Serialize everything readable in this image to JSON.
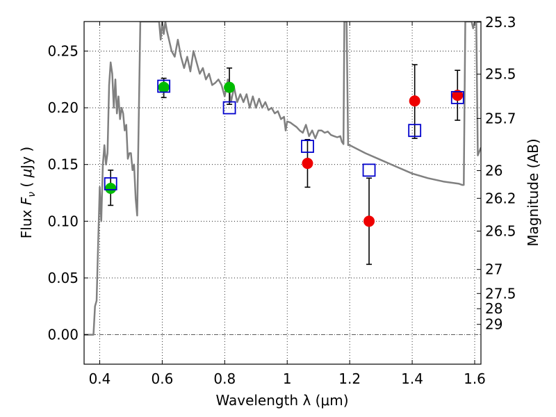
{
  "chart_data": {
    "type": "scatter",
    "xlabel": "Wavelength  λ (μm)",
    "ylabel": "Flux  F_ν  ( μJy )",
    "ylabel_right": "Magnitude (AB)",
    "xlim": [
      0.35,
      1.62
    ],
    "ylim": [
      -0.026,
      0.276
    ],
    "x_ticks": [
      0.4,
      0.6,
      0.8,
      1.0,
      1.2,
      1.4,
      1.6
    ],
    "x_tick_labels": [
      "0.4",
      "0.6",
      "0.8",
      "1",
      "1.2",
      "1.4",
      "1.6"
    ],
    "y_ticks": [
      0.0,
      0.05,
      0.1,
      0.15,
      0.2,
      0.25
    ],
    "y_tick_labels": [
      "0.00",
      "0.05",
      "0.10",
      "0.15",
      "0.20",
      "0.25"
    ],
    "mag_ticks": [
      {
        "label": "25.3",
        "flux": 0.2755
      },
      {
        "label": "25.5",
        "flux": 0.2296
      },
      {
        "label": "25.7",
        "flux": 0.1906
      },
      {
        "label": "26",
        "flux": 0.1446
      },
      {
        "label": "26.2",
        "flux": 0.1202
      },
      {
        "label": "26.5",
        "flux": 0.0913
      },
      {
        "label": "27",
        "flux": 0.0575
      },
      {
        "label": "27.5",
        "flux": 0.0363
      },
      {
        "label": "28",
        "flux": 0.0229
      },
      {
        "label": "29",
        "flux": 0.0091
      }
    ],
    "grid": true,
    "model_sed": {
      "color": "#808080",
      "x": [
        0.35,
        0.38,
        0.385,
        0.39,
        0.395,
        0.4,
        0.405,
        0.41,
        0.415,
        0.42,
        0.425,
        0.43,
        0.435,
        0.44,
        0.445,
        0.45,
        0.455,
        0.46,
        0.465,
        0.47,
        0.475,
        0.48,
        0.485,
        0.49,
        0.495,
        0.5,
        0.505,
        0.51,
        0.515,
        0.52,
        0.53,
        0.54,
        0.55,
        0.56,
        0.57,
        0.575,
        0.58,
        0.585,
        0.59,
        0.595,
        0.6,
        0.605,
        0.61,
        0.615,
        0.62,
        0.63,
        0.64,
        0.65,
        0.66,
        0.67,
        0.68,
        0.69,
        0.7,
        0.71,
        0.72,
        0.73,
        0.74,
        0.75,
        0.76,
        0.77,
        0.78,
        0.79,
        0.8,
        0.81,
        0.82,
        0.83,
        0.84,
        0.85,
        0.86,
        0.87,
        0.88,
        0.89,
        0.9,
        0.91,
        0.92,
        0.93,
        0.94,
        0.95,
        0.96,
        0.97,
        0.98,
        0.99,
        0.995,
        1.0,
        1.01,
        1.02,
        1.03,
        1.04,
        1.05,
        1.06,
        1.07,
        1.08,
        1.09,
        1.1,
        1.11,
        1.12,
        1.13,
        1.14,
        1.15,
        1.16,
        1.17,
        1.175,
        1.18,
        1.183,
        1.186,
        1.19,
        1.195,
        1.2,
        1.25,
        1.3,
        1.35,
        1.4,
        1.45,
        1.5,
        1.55,
        1.56,
        1.565,
        1.57,
        1.575,
        1.58,
        1.59,
        1.595,
        1.6,
        1.605,
        1.61,
        1.62
      ],
      "y": [
        0.0,
        0.0,
        0.025,
        0.03,
        0.08,
        0.13,
        0.1,
        0.15,
        0.167,
        0.15,
        0.16,
        0.22,
        0.24,
        0.23,
        0.2,
        0.225,
        0.195,
        0.21,
        0.19,
        0.2,
        0.195,
        0.18,
        0.185,
        0.155,
        0.16,
        0.16,
        0.145,
        0.15,
        0.12,
        0.105,
        0.276,
        0.276,
        0.276,
        0.276,
        0.276,
        0.276,
        0.276,
        0.276,
        0.276,
        0.26,
        0.276,
        0.265,
        0.276,
        0.268,
        0.262,
        0.25,
        0.245,
        0.26,
        0.245,
        0.235,
        0.245,
        0.232,
        0.25,
        0.24,
        0.23,
        0.235,
        0.225,
        0.23,
        0.22,
        0.222,
        0.225,
        0.22,
        0.21,
        0.225,
        0.205,
        0.218,
        0.205,
        0.212,
        0.205,
        0.212,
        0.2,
        0.21,
        0.2,
        0.208,
        0.2,
        0.205,
        0.198,
        0.2,
        0.195,
        0.197,
        0.19,
        0.192,
        0.18,
        0.188,
        0.187,
        0.185,
        0.183,
        0.18,
        0.178,
        0.185,
        0.175,
        0.18,
        0.173,
        0.18,
        0.18,
        0.178,
        0.179,
        0.176,
        0.175,
        0.174,
        0.175,
        0.17,
        0.168,
        0.276,
        0.276,
        0.276,
        0.167,
        0.167,
        0.16,
        0.154,
        0.148,
        0.142,
        0.138,
        0.135,
        0.133,
        0.132,
        0.132,
        0.276,
        0.276,
        0.276,
        0.276,
        0.27,
        0.276,
        0.276,
        0.158,
        0.165
      ]
    },
    "series": [
      {
        "marker": "open-square",
        "color": "#0000cc",
        "x": [
          0.435,
          0.605,
          0.815,
          1.065,
          1.262,
          1.408,
          1.545
        ],
        "y": [
          0.133,
          0.219,
          0.2,
          0.166,
          0.145,
          0.18,
          0.209
        ]
      },
      {
        "marker": "filled-circle",
        "color": "#00bb00",
        "x": [
          0.435,
          0.605,
          0.815
        ],
        "y": [
          0.129,
          0.218,
          0.218
        ]
      },
      {
        "marker": "filled-circle",
        "color": "#ee0000",
        "x": [
          1.065,
          1.262,
          1.408,
          1.545
        ],
        "y": [
          0.151,
          0.1,
          0.206,
          0.211
        ]
      }
    ],
    "error_bars": [
      {
        "x": 0.435,
        "y": 0.129,
        "low": 0.114,
        "high": 0.145
      },
      {
        "x": 0.605,
        "y": 0.218,
        "low": 0.209,
        "high": 0.226
      },
      {
        "x": 0.815,
        "y": 0.218,
        "low": 0.203,
        "high": 0.235
      },
      {
        "x": 1.065,
        "y": 0.151,
        "low": 0.13,
        "high": 0.172
      },
      {
        "x": 1.262,
        "y": 0.1,
        "low": 0.062,
        "high": 0.138
      },
      {
        "x": 1.408,
        "y": 0.206,
        "low": 0.173,
        "high": 0.238
      },
      {
        "x": 1.545,
        "y": 0.211,
        "low": 0.189,
        "high": 0.233
      }
    ]
  }
}
